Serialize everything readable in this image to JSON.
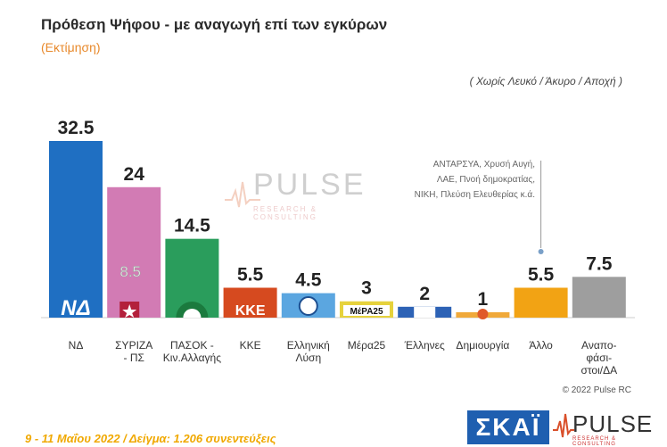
{
  "header": {
    "title": "Πρόθεση Ψήφου - με αναγωγή επί των εγκύρων",
    "subtitle": "(Εκτίμηση)",
    "note": "( Χωρίς Λευκό / Άκυρο / Αποχή )"
  },
  "chart_data": {
    "type": "bar",
    "title": "Πρόθεση Ψήφου - με αναγωγή επί των εγκύρων",
    "subtitle": "(Εκτίμηση)",
    "xlabel": "",
    "ylabel": "",
    "ylim": [
      0,
      35
    ],
    "grid": false,
    "categories": [
      [
        "ΝΔ"
      ],
      [
        "ΣΥΡΙΖΑ",
        "- ΠΣ"
      ],
      [
        "ΠΑΣΟΚ -",
        "Κιν.Αλλαγής"
      ],
      [
        "ΚΚΕ"
      ],
      [
        "Ελληνική",
        "Λύση"
      ],
      [
        "Μέρα25"
      ],
      [
        "Έλληνες"
      ],
      [
        "Δημιουργία"
      ],
      [
        "Άλλο"
      ],
      [
        "Αναπο-",
        "φάσι-",
        "στοι/ΔΑ"
      ]
    ],
    "values": [
      32.5,
      24,
      14.5,
      5.5,
      4.5,
      3,
      2,
      1,
      5.5,
      7.5
    ],
    "value_labels": [
      "32.5",
      "24",
      "14.5",
      "5.5",
      "4.5",
      "3",
      "2",
      "1",
      "5.5",
      "7.5"
    ],
    "colors": [
      "#1f6fc2",
      "#d27bb4",
      "#2a9d5c",
      "#d64a1f",
      "#5ba6e0",
      "#e6d23c",
      "#2d62b5",
      "#f0a93a",
      "#f2a314",
      "#9e9e9e"
    ],
    "annotations": [
      {
        "category_index": 1,
        "value": 8.5,
        "text": "8.5"
      },
      {
        "category_index": 8,
        "text": [
          "ΑΝΤΑΡΣΥΑ, Χρυσή Αυγή,",
          "ΛΑΕ, Πνοή δημοκρατίας,",
          "ΝΙΚΗ, Πλεύση Ελευθερίας κ.ά."
        ]
      }
    ],
    "icons": [
      "nd-logo-icon",
      "syriza-logo-icon",
      "pasok-logo-icon",
      "kke-logo-icon",
      "elliniki-lysi-logo-icon",
      "mera25-logo-icon",
      "ellines-logo-icon",
      "dimiourgia-logo-icon",
      "",
      ""
    ]
  },
  "watermark": {
    "word": "PULSE",
    "tag": "RESEARCH & CONSULTING"
  },
  "copyright": "© 2022 Pulse RC",
  "footer": "9 - 11 Μαΐου 2022 / Δείγμα: 1.206 συνεντεύξεις",
  "logos": {
    "skai": "ΣΚΑΪ",
    "pulse": "PULSE",
    "pulse_tag": "RESEARCH & CONSULTING"
  }
}
